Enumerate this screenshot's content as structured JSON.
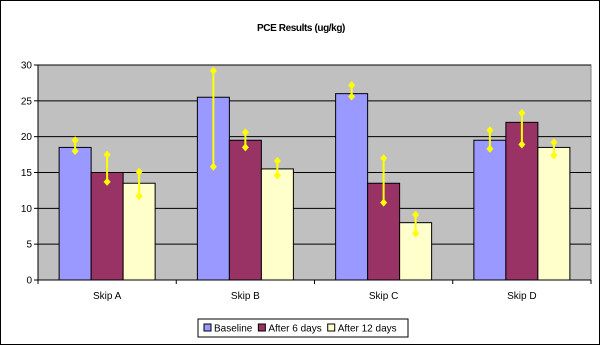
{
  "chart_data": {
    "type": "bar",
    "title": "PCE Results (ug/kg)",
    "xlabel": "",
    "ylabel": "",
    "categories": [
      "Skip A",
      "Skip B",
      "Skip C",
      "Skip D"
    ],
    "ylim": [
      0,
      30
    ],
    "yticks": [
      0,
      5,
      10,
      15,
      20,
      25,
      30
    ],
    "grid": true,
    "legend_position": "bottom",
    "plot_background": "#C0C0C0",
    "error_bar_color": "#FFFF00",
    "series": [
      {
        "name": "Baseline",
        "color": "#9999FF",
        "values": [
          18.5,
          25.5,
          26.0,
          19.5
        ],
        "error_low": [
          18.0,
          15.8,
          25.6,
          18.3
        ],
        "error_high": [
          19.5,
          29.2,
          27.2,
          20.9
        ]
      },
      {
        "name": "After 6 days",
        "color": "#993366",
        "values": [
          15.0,
          19.5,
          13.5,
          22.0
        ],
        "error_low": [
          13.7,
          18.5,
          10.8,
          18.9
        ],
        "error_high": [
          17.5,
          20.6,
          17.0,
          23.3
        ]
      },
      {
        "name": "After 12 days",
        "color": "#FFFFCC",
        "values": [
          13.5,
          15.5,
          8.0,
          18.5
        ],
        "error_low": [
          11.7,
          14.6,
          6.5,
          17.4
        ],
        "error_high": [
          15.1,
          16.6,
          9.1,
          19.2
        ]
      }
    ]
  }
}
